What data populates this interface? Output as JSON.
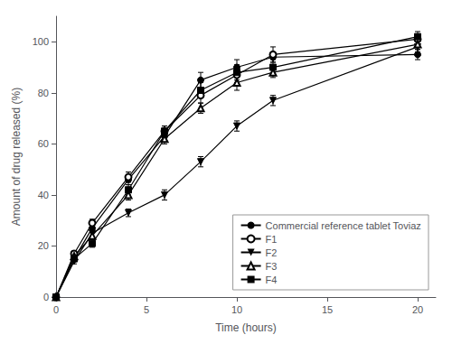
{
  "chart_data": {
    "type": "line",
    "xlabel": "Time (hours)",
    "ylabel": "Amount of drug released (%)",
    "xlim": [
      0,
      21
    ],
    "ylim": [
      0,
      110
    ],
    "xticks": [
      0,
      5,
      10,
      15,
      20
    ],
    "yticks": [
      0,
      20,
      40,
      60,
      80,
      100
    ],
    "grid": false,
    "legend": "lower right",
    "x": [
      0,
      1,
      2,
      4,
      6,
      8,
      10,
      12,
      20
    ],
    "series": [
      {
        "name": "Commercial reference tablet Toviaz",
        "color": "black",
        "marker": "circle",
        "values": [
          0,
          15,
          27,
          46,
          63,
          85,
          90,
          94,
          95
        ],
        "yerr": [
          0,
          1,
          1.5,
          2,
          2,
          3,
          3,
          2,
          2
        ]
      },
      {
        "name": "F1",
        "color": "black",
        "marker": "open-circle",
        "values": [
          0,
          17,
          29,
          47,
          65,
          79,
          87,
          95,
          101
        ],
        "yerr": [
          0,
          1,
          1.5,
          2,
          2,
          3,
          3,
          3,
          2
        ]
      },
      {
        "name": "F2",
        "color": "black",
        "marker": "triangle-down",
        "values": [
          0,
          14,
          25,
          33,
          40,
          53,
          67,
          77,
          98
        ],
        "yerr": [
          0,
          1,
          1.5,
          1.5,
          2,
          2,
          2,
          2,
          2
        ]
      },
      {
        "name": "F3",
        "color": "black",
        "marker": "open-triangle-up",
        "values": [
          0,
          16,
          24,
          40,
          62,
          74,
          84,
          88,
          99
        ],
        "yerr": [
          0,
          1,
          1.5,
          2,
          2,
          2,
          3,
          2,
          2
        ]
      },
      {
        "name": "F4",
        "color": "black",
        "marker": "square",
        "values": [
          0,
          15,
          21,
          42,
          65,
          81,
          88,
          90,
          102
        ],
        "yerr": [
          0,
          1,
          1.5,
          2,
          2,
          3,
          3,
          3,
          2
        ]
      }
    ]
  }
}
